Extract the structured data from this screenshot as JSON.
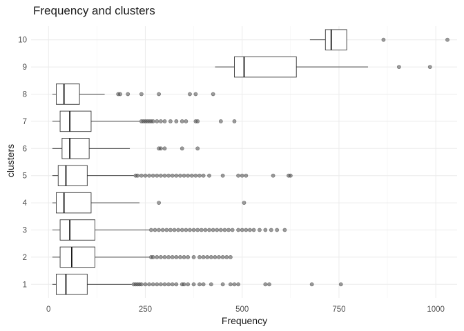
{
  "chart_data": {
    "type": "boxplot",
    "title": "Frequency and clusters",
    "xlabel": "Frequency",
    "ylabel": "clusters",
    "xlim": [
      -45,
      1055
    ],
    "x_ticks": [
      0,
      250,
      500,
      750,
      1000
    ],
    "grid": true,
    "categories": [
      "1",
      "2",
      "3",
      "4",
      "5",
      "6",
      "7",
      "8",
      "9",
      "10"
    ],
    "series": [
      {
        "cluster": "1",
        "min": 10,
        "q1": 20,
        "median": 45,
        "q3": 100,
        "max": 215,
        "outliers": [
          220,
          225,
          230,
          235,
          240,
          250,
          260,
          270,
          280,
          290,
          300,
          310,
          320,
          330,
          345,
          350,
          360,
          375,
          390,
          400,
          420,
          450,
          470,
          480,
          490,
          560,
          570,
          680,
          755
        ]
      },
      {
        "cluster": "2",
        "min": 10,
        "q1": 30,
        "median": 60,
        "q3": 120,
        "max": 260,
        "outliers": [
          265,
          270,
          280,
          290,
          300,
          310,
          320,
          330,
          340,
          350,
          360,
          375,
          390,
          400,
          410,
          420,
          430,
          440,
          450,
          460,
          470
        ]
      },
      {
        "cluster": "3",
        "min": 10,
        "q1": 30,
        "median": 55,
        "q3": 120,
        "max": 260,
        "outliers": [
          265,
          275,
          285,
          295,
          305,
          315,
          325,
          335,
          345,
          355,
          365,
          375,
          385,
          395,
          405,
          415,
          425,
          435,
          445,
          455,
          465,
          475,
          490,
          500,
          510,
          520,
          530,
          545,
          560,
          575,
          590,
          610
        ]
      },
      {
        "cluster": "4",
        "min": 10,
        "q1": 20,
        "median": 40,
        "q3": 110,
        "max": 235,
        "outliers": [
          285,
          505
        ]
      },
      {
        "cluster": "5",
        "min": 10,
        "q1": 25,
        "median": 45,
        "q3": 100,
        "max": 220,
        "outliers": [
          225,
          230,
          240,
          250,
          260,
          270,
          280,
          290,
          300,
          310,
          320,
          330,
          340,
          350,
          360,
          370,
          380,
          390,
          400,
          415,
          450,
          490,
          500,
          510,
          580,
          620,
          625
        ]
      },
      {
        "cluster": "6",
        "min": 10,
        "q1": 35,
        "median": 55,
        "q3": 105,
        "max": 210,
        "outliers": [
          285,
          290,
          300,
          345,
          385
        ]
      },
      {
        "cluster": "7",
        "min": 10,
        "q1": 30,
        "median": 55,
        "q3": 110,
        "max": 235,
        "outliers": [
          240,
          245,
          250,
          255,
          260,
          265,
          270,
          280,
          290,
          300,
          315,
          330,
          345,
          355,
          380,
          385,
          445,
          480
        ]
      },
      {
        "cluster": "8",
        "min": 10,
        "q1": 20,
        "median": 40,
        "q3": 80,
        "max": 145,
        "outliers": [
          180,
          185,
          205,
          240,
          285,
          365,
          380,
          425
        ]
      },
      {
        "cluster": "9",
        "min": 430,
        "q1": 480,
        "median": 505,
        "q3": 640,
        "max": 825,
        "outliers": [
          905,
          985
        ]
      },
      {
        "cluster": "10",
        "min": 675,
        "q1": 715,
        "median": 730,
        "q3": 770,
        "max": 770,
        "outliers": [
          865,
          1030
        ]
      }
    ]
  }
}
